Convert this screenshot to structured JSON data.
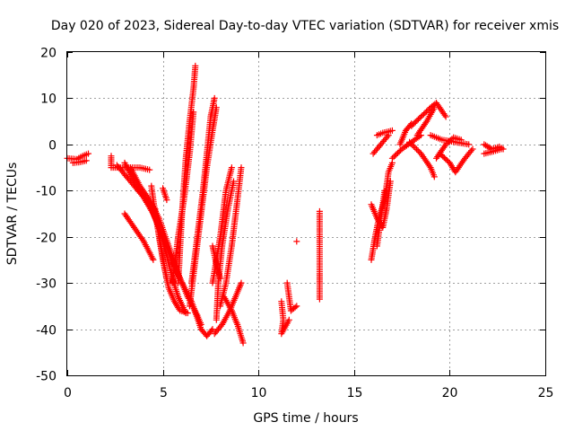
{
  "chart_data": {
    "type": "scatter",
    "title": "Day 020 of 2023, Sidereal Day-to-day VTEC variation (SDTVAR) for receiver xmis",
    "xlabel": "GPS time / hours",
    "ylabel": "SDTVAR / TECUs",
    "xlim": [
      0,
      25
    ],
    "ylim": [
      -50,
      20
    ],
    "xticks": [
      0,
      5,
      10,
      15,
      20,
      25
    ],
    "yticks": [
      -50,
      -40,
      -30,
      -20,
      -10,
      0,
      10,
      20
    ],
    "grid": true,
    "marker": "+",
    "colors": {
      "series": "#ff0000",
      "grid": "#a0a0a0",
      "frame": "#000000"
    },
    "series": [
      {
        "segments": [
          [
            [
              0.0,
              -3.0
            ],
            [
              0.5,
              -3.2
            ],
            [
              0.8,
              -2.5
            ],
            [
              1.1,
              -2.0
            ]
          ],
          [
            [
              0.3,
              -4.0
            ],
            [
              0.7,
              -3.8
            ],
            [
              1.0,
              -3.5
            ]
          ],
          [
            [
              2.3,
              -2.5
            ],
            [
              2.3,
              -5.0
            ],
            [
              3.0,
              -5.0
            ],
            [
              3.8,
              -5.0
            ],
            [
              4.3,
              -5.5
            ]
          ],
          [
            [
              2.6,
              -4.5
            ],
            [
              3.3,
              -8.0
            ],
            [
              4.0,
              -11.5
            ],
            [
              4.5,
              -15.0
            ],
            [
              5.0,
              -20.0
            ],
            [
              5.5,
              -25.5
            ],
            [
              6.0,
              -30.0
            ],
            [
              6.5,
              -34.0
            ],
            [
              7.0,
              -40.0
            ],
            [
              7.3,
              -41.5
            ],
            [
              7.6,
              -40.0
            ]
          ],
          [
            [
              3.0,
              -4.0
            ],
            [
              3.5,
              -8.0
            ],
            [
              4.0,
              -11.5
            ],
            [
              4.4,
              -14.0
            ],
            [
              4.8,
              -18.0
            ],
            [
              5.2,
              -24.0
            ],
            [
              5.5,
              -29.0
            ],
            [
              5.8,
              -33.0
            ],
            [
              6.2,
              -36.5
            ]
          ],
          [
            [
              3.3,
              -5.0
            ],
            [
              3.8,
              -9.0
            ],
            [
              4.3,
              -12.0
            ],
            [
              4.8,
              -16.0
            ],
            [
              5.3,
              -22.0
            ],
            [
              5.8,
              -28.0
            ],
            [
              6.3,
              -33.0
            ],
            [
              6.8,
              -37.0
            ],
            [
              7.0,
              -39.0
            ]
          ],
          [
            [
              3.0,
              -15.0
            ],
            [
              3.5,
              -18.0
            ],
            [
              4.0,
              -21.0
            ],
            [
              4.5,
              -25.0
            ]
          ],
          [
            [
              4.4,
              -9.0
            ],
            [
              4.6,
              -15.0
            ],
            [
              4.9,
              -22.0
            ],
            [
              5.1,
              -27.0
            ],
            [
              5.3,
              -31.0
            ],
            [
              5.6,
              -34.0
            ],
            [
              5.9,
              -36.0
            ],
            [
              6.3,
              -36.5
            ]
          ],
          [
            [
              4.6,
              -14.0
            ],
            [
              4.8,
              -20.0
            ],
            [
              5.0,
              -25.0
            ],
            [
              5.2,
              -29.0
            ]
          ],
          [
            [
              5.0,
              -9.5
            ],
            [
              5.2,
              -12.0
            ]
          ],
          [
            [
              5.8,
              -30.0
            ],
            [
              6.0,
              -15.0
            ],
            [
              6.2,
              -3.0
            ],
            [
              6.4,
              5.0
            ],
            [
              6.6,
              12.0
            ],
            [
              6.7,
              17.0
            ]
          ],
          [
            [
              5.5,
              -30.0
            ],
            [
              5.8,
              -20.0
            ],
            [
              6.1,
              -12.0
            ],
            [
              6.4,
              -2.0
            ],
            [
              6.6,
              7.0
            ]
          ],
          [
            [
              6.5,
              -30.0
            ],
            [
              6.8,
              -20.0
            ],
            [
              7.1,
              -10.0
            ],
            [
              7.3,
              -2.0
            ],
            [
              7.5,
              6.0
            ],
            [
              7.7,
              10.0
            ]
          ],
          [
            [
              6.4,
              -35.0
            ],
            [
              6.7,
              -25.0
            ],
            [
              7.0,
              -15.0
            ],
            [
              7.3,
              -5.0
            ],
            [
              7.6,
              3.0
            ],
            [
              7.8,
              8.0
            ]
          ],
          [
            [
              7.6,
              -30.0
            ],
            [
              7.8,
              -25.0
            ],
            [
              8.0,
              -20.0
            ],
            [
              8.3,
              -10.0
            ],
            [
              8.6,
              -5.0
            ]
          ],
          [
            [
              7.8,
              -38.0
            ],
            [
              7.9,
              -30.0
            ],
            [
              8.1,
              -22.0
            ],
            [
              8.4,
              -14.0
            ],
            [
              8.7,
              -8.0
            ]
          ],
          [
            [
              8.0,
              -35.0
            ],
            [
              8.3,
              -30.0
            ],
            [
              8.6,
              -22.0
            ],
            [
              8.9,
              -12.0
            ],
            [
              9.1,
              -5.0
            ]
          ],
          [
            [
              7.7,
              -41.0
            ],
            [
              8.1,
              -39.0
            ],
            [
              8.5,
              -36.0
            ],
            [
              8.8,
              -33.0
            ],
            [
              9.1,
              -30.0
            ]
          ],
          [
            [
              8.2,
              -33.0
            ],
            [
              8.6,
              -36.0
            ],
            [
              8.9,
              -39.0
            ],
            [
              9.2,
              -43.0
            ]
          ],
          [
            [
              7.6,
              -22.0
            ],
            [
              7.8,
              -26.0
            ],
            [
              8.0,
              -29.0
            ]
          ],
          [
            [
              11.2,
              -34.0
            ],
            [
              11.3,
              -38.0
            ],
            [
              11.2,
              -41.0
            ],
            [
              11.6,
              -38.0
            ]
          ],
          [
            [
              11.5,
              -30.0
            ],
            [
              11.7,
              -36.0
            ],
            [
              12.0,
              -35.0
            ]
          ],
          [
            [
              12.0,
              -21.0
            ]
          ],
          [
            [
              13.2,
              -14.5
            ],
            [
              13.2,
              -28.0
            ],
            [
              13.2,
              -30.0
            ],
            [
              13.2,
              -33.5
            ]
          ],
          [
            [
              15.9,
              -25.0
            ],
            [
              16.1,
              -20.0
            ],
            [
              16.3,
              -16.0
            ],
            [
              16.6,
              -12.0
            ],
            [
              16.8,
              -6.0
            ],
            [
              17.0,
              -4.0
            ]
          ],
          [
            [
              15.9,
              -13.0
            ],
            [
              16.2,
              -16.0
            ],
            [
              16.5,
              -18.0
            ],
            [
              16.7,
              -14.0
            ],
            [
              16.9,
              -8.0
            ]
          ],
          [
            [
              16.2,
              -22.0
            ],
            [
              16.4,
              -16.0
            ],
            [
              16.6,
              -10.0
            ]
          ],
          [
            [
              16.0,
              -2.0
            ],
            [
              16.4,
              0.0
            ],
            [
              16.8,
              2.0
            ]
          ],
          [
            [
              16.2,
              2.0
            ],
            [
              16.5,
              2.5
            ],
            [
              17.0,
              3.0
            ]
          ],
          [
            [
              17.0,
              -3.0
            ],
            [
              17.5,
              -1.0
            ],
            [
              18.0,
              0.5
            ],
            [
              18.5,
              2.0
            ]
          ],
          [
            [
              17.4,
              0.0
            ],
            [
              17.7,
              3.0
            ],
            [
              18.0,
              4.5
            ]
          ],
          [
            [
              17.9,
              0.5
            ],
            [
              18.5,
              -2.0
            ],
            [
              19.0,
              -5.0
            ],
            [
              19.2,
              -7.0
            ]
          ],
          [
            [
              18.0,
              4.0
            ],
            [
              18.5,
              6.0
            ],
            [
              19.0,
              8.0
            ],
            [
              19.3,
              9.0
            ],
            [
              19.8,
              6.0
            ]
          ],
          [
            [
              18.3,
              2.0
            ],
            [
              18.8,
              5.0
            ],
            [
              19.2,
              8.0
            ]
          ],
          [
            [
              19.3,
              -3.0
            ],
            [
              19.8,
              0.0
            ],
            [
              20.2,
              1.5
            ],
            [
              20.6,
              1.0
            ]
          ],
          [
            [
              19.0,
              2.0
            ],
            [
              19.6,
              1.0
            ],
            [
              20.3,
              0.5
            ],
            [
              21.0,
              0.0
            ]
          ],
          [
            [
              19.5,
              -2.0
            ],
            [
              20.0,
              -4.0
            ],
            [
              20.3,
              -6.0
            ],
            [
              20.8,
              -3.0
            ],
            [
              21.2,
              -1.0
            ]
          ],
          [
            [
              21.8,
              0.0
            ],
            [
              22.2,
              -1.0
            ],
            [
              22.6,
              -0.5
            ],
            [
              22.8,
              -1.0
            ]
          ],
          [
            [
              21.8,
              -2.0
            ],
            [
              22.3,
              -1.5
            ],
            [
              22.7,
              -1.0
            ]
          ]
        ]
      }
    ]
  }
}
